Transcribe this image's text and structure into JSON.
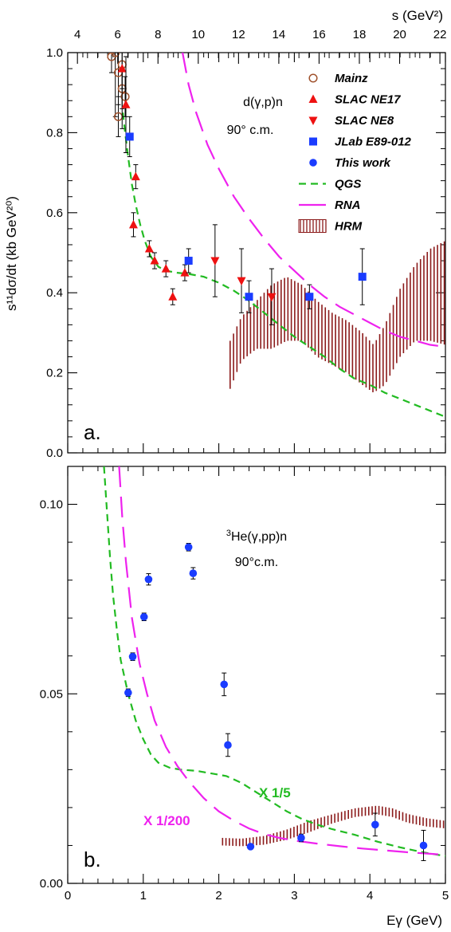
{
  "colors": {
    "qgs": "#22bb22",
    "rna": "#ee22ee",
    "hrm": "#8b1a1a",
    "mainz": "#a0522d",
    "slac_ne17": "#ee1111",
    "slac_ne8": "#ee1111",
    "jlab": "#1a3cff",
    "this_work": "#1a3cff",
    "axis": "#000000"
  },
  "chart_data": [
    {
      "type": "scatter",
      "panel_label": "a.",
      "title": "",
      "reaction": "d(γ,p)n",
      "angle": "90° c.m.",
      "ylabel": "s¹¹dσ/dt (kb GeV²⁰)",
      "top_axis": {
        "label": "s (GeV²)",
        "range": [
          3.25,
          22
        ],
        "ticks": [
          "4",
          "6",
          "8",
          "10",
          "12",
          "14",
          "16",
          "18",
          "20",
          "22"
        ],
        "tick_values": [
          4,
          6,
          8,
          10,
          12,
          14,
          16,
          18,
          20,
          22
        ]
      },
      "xlim": [
        0,
        5
      ],
      "ylim": [
        0,
        1.0
      ],
      "yticks": [
        "0.0",
        "0.2",
        "0.4",
        "0.6",
        "0.8",
        "1.0"
      ],
      "ytick_values": [
        0,
        0.2,
        0.4,
        0.6,
        0.8,
        1.0
      ],
      "legend_placement": "top-right",
      "legend": [
        "Mainz",
        "SLAC NE17",
        "SLAC NE8",
        "JLab E89-012",
        "This work",
        "QGS",
        "RNA",
        "HRM"
      ],
      "series": [
        {
          "name": "Mainz",
          "marker": "open-circle",
          "color_key": "mainz",
          "points": [
            {
              "x": 0.58,
              "y": 0.99,
              "err": 0.04
            },
            {
              "x": 0.63,
              "y": 1.0,
              "err": 0.16
            },
            {
              "x": 0.67,
              "y": 0.95,
              "err": 0.08
            },
            {
              "x": 0.67,
              "y": 0.84,
              "err": 0.05
            },
            {
              "x": 0.72,
              "y": 0.97,
              "err": 0.06
            },
            {
              "x": 0.72,
              "y": 0.91,
              "err": 0.05
            },
            {
              "x": 0.76,
              "y": 0.89,
              "err": 0.05
            }
          ]
        },
        {
          "name": "SLAC NE17",
          "marker": "triangle-up",
          "color_key": "slac_ne17",
          "points": [
            {
              "x": 0.72,
              "y": 0.96,
              "err": 0.15
            },
            {
              "x": 0.77,
              "y": 0.87,
              "err": 0.12
            },
            {
              "x": 0.87,
              "y": 0.57,
              "err": 0.03
            },
            {
              "x": 0.9,
              "y": 0.69,
              "err": 0.03
            },
            {
              "x": 1.08,
              "y": 0.51,
              "err": 0.02
            },
            {
              "x": 1.15,
              "y": 0.48,
              "err": 0.02
            },
            {
              "x": 1.3,
              "y": 0.46,
              "err": 0.02
            },
            {
              "x": 1.39,
              "y": 0.39,
              "err": 0.02
            },
            {
              "x": 1.55,
              "y": 0.45,
              "err": 0.02
            }
          ]
        },
        {
          "name": "SLAC NE8",
          "marker": "triangle-down",
          "color_key": "slac_ne8",
          "points": [
            {
              "x": 1.95,
              "y": 0.48,
              "err": 0.09
            },
            {
              "x": 2.3,
              "y": 0.43,
              "err": 0.08
            },
            {
              "x": 2.7,
              "y": 0.39,
              "err": 0.07
            }
          ]
        },
        {
          "name": "JLab E89-012",
          "marker": "square",
          "color_key": "jlab",
          "points": [
            {
              "x": 0.82,
              "y": 0.79,
              "err": 0.05
            },
            {
              "x": 1.6,
              "y": 0.48,
              "err": 0.03
            },
            {
              "x": 2.4,
              "y": 0.39,
              "err": 0.04
            },
            {
              "x": 3.2,
              "y": 0.39,
              "err": 0.03
            },
            {
              "x": 3.9,
              "y": 0.44,
              "err": 0.07
            }
          ]
        },
        {
          "name": "This work",
          "marker": "circle",
          "color_key": "this_work",
          "points": []
        }
      ],
      "curves": [
        {
          "name": "QGS",
          "style": "dashed",
          "color_key": "qgs",
          "points": [
            [
              0.73,
              0.85
            ],
            [
              0.76,
              0.8
            ],
            [
              0.8,
              0.74
            ],
            [
              0.85,
              0.67
            ],
            [
              0.9,
              0.62
            ],
            [
              0.96,
              0.57
            ],
            [
              1.02,
              0.53
            ],
            [
              1.1,
              0.49
            ],
            [
              1.2,
              0.465
            ],
            [
              1.3,
              0.455
            ],
            [
              1.45,
              0.45
            ],
            [
              1.6,
              0.447
            ],
            [
              1.8,
              0.44
            ],
            [
              2.0,
              0.425
            ],
            [
              2.2,
              0.405
            ],
            [
              2.4,
              0.38
            ],
            [
              2.6,
              0.35
            ],
            [
              2.8,
              0.32
            ],
            [
              3.0,
              0.29
            ],
            [
              3.2,
              0.265
            ],
            [
              3.4,
              0.24
            ],
            [
              3.6,
              0.21
            ],
            [
              3.8,
              0.185
            ],
            [
              4.0,
              0.17
            ],
            [
              4.2,
              0.15
            ],
            [
              4.4,
              0.135
            ],
            [
              4.6,
              0.12
            ],
            [
              4.8,
              0.105
            ],
            [
              5.0,
              0.09
            ]
          ]
        },
        {
          "name": "RNA",
          "style": "long-dashed",
          "color_key": "rna",
          "points": [
            [
              1.52,
              1.0
            ],
            [
              1.6,
              0.92
            ],
            [
              1.7,
              0.85
            ],
            [
              1.85,
              0.77
            ],
            [
              2.0,
              0.71
            ],
            [
              2.2,
              0.64
            ],
            [
              2.4,
              0.585
            ],
            [
              2.6,
              0.535
            ],
            [
              2.8,
              0.49
            ],
            [
              3.0,
              0.455
            ],
            [
              3.2,
              0.42
            ],
            [
              3.4,
              0.39
            ],
            [
              3.6,
              0.365
            ],
            [
              3.8,
              0.345
            ],
            [
              4.0,
              0.325
            ],
            [
              4.2,
              0.305
            ],
            [
              4.4,
              0.29
            ],
            [
              4.6,
              0.28
            ],
            [
              4.8,
              0.27
            ],
            [
              5.0,
              0.265
            ]
          ]
        },
        {
          "name": "HRM",
          "style": "band",
          "color_key": "hrm",
          "band": [
            [
              2.15,
              0.16,
              0.28
            ],
            [
              2.3,
              0.23,
              0.34
            ],
            [
              2.5,
              0.26,
              0.38
            ],
            [
              2.7,
              0.26,
              0.42
            ],
            [
              2.9,
              0.28,
              0.44
            ],
            [
              3.1,
              0.28,
              0.42
            ],
            [
              3.3,
              0.24,
              0.38
            ],
            [
              3.5,
              0.22,
              0.35
            ],
            [
              3.7,
              0.2,
              0.33
            ],
            [
              3.9,
              0.17,
              0.3
            ],
            [
              4.05,
              0.15,
              0.27
            ],
            [
              4.2,
              0.17,
              0.32
            ],
            [
              4.4,
              0.24,
              0.41
            ],
            [
              4.6,
              0.28,
              0.47
            ],
            [
              4.8,
              0.28,
              0.51
            ],
            [
              5.0,
              0.27,
              0.53
            ]
          ]
        }
      ]
    },
    {
      "type": "scatter",
      "panel_label": "b.",
      "title": "",
      "reaction_sup": "3",
      "reaction": "He(γ,pp)n",
      "angle": "90°c.m.",
      "xlabel": "Eγ (GeV)",
      "xlim": [
        0,
        5
      ],
      "ylim": [
        0,
        0.11
      ],
      "xticks": [
        "0",
        "1",
        "2",
        "3",
        "4",
        "5"
      ],
      "xtick_values": [
        0,
        1,
        2,
        3,
        4,
        5
      ],
      "yticks": [
        "0.00",
        "0.05",
        "0.10"
      ],
      "ytick_values": [
        0,
        0.05,
        0.1
      ],
      "series": [
        {
          "name": "This work",
          "marker": "circle",
          "color_key": "this_work",
          "points": [
            {
              "x": 0.8,
              "y": 0.0503,
              "err": 0.001
            },
            {
              "x": 0.86,
              "y": 0.0598,
              "err": 0.001
            },
            {
              "x": 1.01,
              "y": 0.0703,
              "err": 0.001
            },
            {
              "x": 1.07,
              "y": 0.0802,
              "err": 0.0015
            },
            {
              "x": 1.6,
              "y": 0.0887,
              "err": 0.001
            },
            {
              "x": 1.66,
              "y": 0.0818,
              "err": 0.0015
            },
            {
              "x": 2.07,
              "y": 0.0525,
              "err": 0.003
            },
            {
              "x": 2.12,
              "y": 0.0365,
              "err": 0.003
            },
            {
              "x": 2.42,
              "y": 0.0097,
              "err": 0.0005
            },
            {
              "x": 3.09,
              "y": 0.012,
              "err": 0.001
            },
            {
              "x": 4.07,
              "y": 0.0155,
              "err": 0.003
            },
            {
              "x": 4.71,
              "y": 0.01,
              "err": 0.004
            }
          ]
        }
      ],
      "curves": [
        {
          "name": "QGS",
          "style": "dashed",
          "color_key": "qgs",
          "scale_label": "X 1/5",
          "points": [
            [
              0.48,
              0.11
            ],
            [
              0.52,
              0.098
            ],
            [
              0.56,
              0.086
            ],
            [
              0.6,
              0.076
            ],
            [
              0.65,
              0.067
            ],
            [
              0.7,
              0.059
            ],
            [
              0.8,
              0.05
            ],
            [
              0.9,
              0.043
            ],
            [
              1.0,
              0.038
            ],
            [
              1.1,
              0.034
            ],
            [
              1.2,
              0.0318
            ],
            [
              1.35,
              0.0305
            ],
            [
              1.5,
              0.03
            ],
            [
              1.7,
              0.0297
            ],
            [
              1.9,
              0.029
            ],
            [
              2.1,
              0.0283
            ],
            [
              2.3,
              0.0265
            ],
            [
              2.5,
              0.024
            ],
            [
              2.7,
              0.0215
            ],
            [
              2.9,
              0.019
            ],
            [
              3.1,
              0.017
            ],
            [
              3.3,
              0.0155
            ],
            [
              3.5,
              0.0143
            ],
            [
              3.8,
              0.0128
            ],
            [
              4.1,
              0.011
            ],
            [
              4.4,
              0.0095
            ],
            [
              4.7,
              0.0082
            ],
            [
              5.0,
              0.0072
            ]
          ]
        },
        {
          "name": "RNA",
          "style": "long-dashed",
          "color_key": "rna",
          "scale_label": "X 1/200",
          "points": [
            [
              0.68,
              0.11
            ],
            [
              0.72,
              0.097
            ],
            [
              0.77,
              0.085
            ],
            [
              0.85,
              0.07
            ],
            [
              0.95,
              0.058
            ],
            [
              1.05,
              0.05
            ],
            [
              1.15,
              0.043
            ],
            [
              1.3,
              0.036
            ],
            [
              1.45,
              0.031
            ],
            [
              1.6,
              0.027
            ],
            [
              1.8,
              0.0225
            ],
            [
              2.0,
              0.019
            ],
            [
              2.2,
              0.0165
            ],
            [
              2.4,
              0.0145
            ],
            [
              2.6,
              0.013
            ],
            [
              2.8,
              0.012
            ],
            [
              3.0,
              0.0113
            ],
            [
              3.3,
              0.0105
            ],
            [
              3.6,
              0.0098
            ],
            [
              3.9,
              0.0092
            ],
            [
              4.2,
              0.0087
            ],
            [
              4.5,
              0.0082
            ],
            [
              4.8,
              0.0078
            ],
            [
              5.0,
              0.0075
            ]
          ]
        },
        {
          "name": "HRM",
          "style": "band",
          "color_key": "hrm",
          "band": [
            [
              2.05,
              0.01,
              0.012
            ],
            [
              2.3,
              0.0098,
              0.0118
            ],
            [
              2.6,
              0.0102,
              0.0125
            ],
            [
              2.9,
              0.0115,
              0.0142
            ],
            [
              3.2,
              0.0135,
              0.0165
            ],
            [
              3.5,
              0.0158,
              0.0182
            ],
            [
              3.8,
              0.0175,
              0.0198
            ],
            [
              4.1,
              0.0182,
              0.0205
            ],
            [
              4.3,
              0.0175,
              0.0198
            ],
            [
              4.5,
              0.016,
              0.0183
            ],
            [
              4.75,
              0.015,
              0.0172
            ],
            [
              5.0,
              0.0145,
              0.0165
            ]
          ]
        }
      ]
    }
  ]
}
